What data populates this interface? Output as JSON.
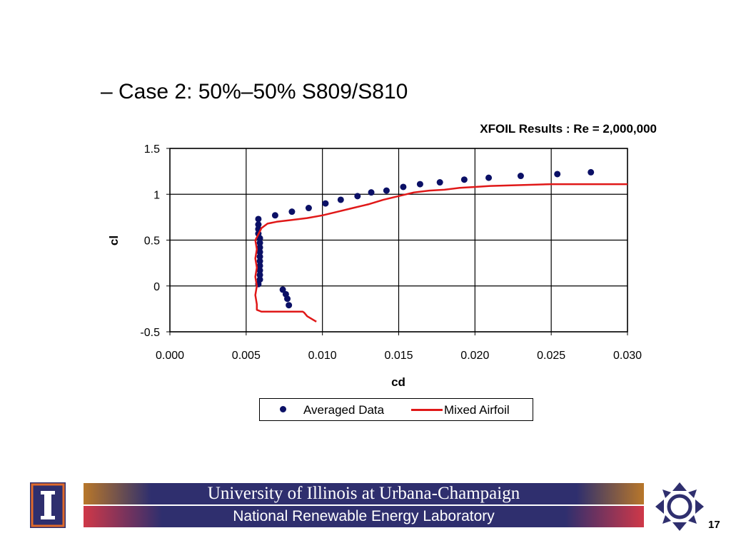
{
  "slide": {
    "bullet": "– Case 2: 50%–50% S809/S810",
    "footer_university": "University of Illinois at Urbana-Champaign",
    "footer_lab": "National Renewable Energy Laboratory",
    "page_number": "17"
  },
  "colors": {
    "series_dots": "#0b1066",
    "series_line": "#e01818",
    "footer_navy": "#2f2f6e",
    "footer_orange": "#b8772a",
    "footer_red": "#cf3848"
  },
  "icons": [
    "illinois-logo-icon",
    "nrel-logo-icon"
  ],
  "chart_data": {
    "type": "scatter",
    "title": "XFOIL Results : Re = 2,000,000",
    "xlabel": "cd",
    "ylabel": "cl",
    "xlim": [
      0.0,
      0.03
    ],
    "ylim": [
      -0.5,
      1.5
    ],
    "xticks": [
      "0.000",
      "0.005",
      "0.010",
      "0.015",
      "0.020",
      "0.025",
      "0.030"
    ],
    "yticks": [
      "-0.5",
      "0",
      "0.5",
      "1",
      "1.5"
    ],
    "grid": true,
    "legend_position": "bottom",
    "series": [
      {
        "name": "Averaged Data",
        "kind": "scatter",
        "x": [
          0.0074,
          0.0076,
          0.0077,
          0.0078,
          0.0058,
          0.0059,
          0.0059,
          0.0059,
          0.0059,
          0.0059,
          0.0059,
          0.0059,
          0.0059,
          0.0059,
          0.0059,
          0.0058,
          0.0058,
          0.0058,
          0.0058,
          0.0069,
          0.008,
          0.0091,
          0.0102,
          0.0112,
          0.0123,
          0.0132,
          0.0142,
          0.0153,
          0.0164,
          0.0177,
          0.0193,
          0.0209,
          0.023,
          0.0254,
          0.0276
        ],
        "y": [
          -0.04,
          -0.09,
          -0.14,
          -0.21,
          0.02,
          0.07,
          0.12,
          0.17,
          0.22,
          0.27,
          0.32,
          0.37,
          0.42,
          0.47,
          0.52,
          0.57,
          0.62,
          0.67,
          0.73,
          0.77,
          0.81,
          0.85,
          0.9,
          0.94,
          0.98,
          1.02,
          1.04,
          1.08,
          1.11,
          1.13,
          1.16,
          1.18,
          1.2,
          1.22,
          1.24
        ]
      },
      {
        "name": "Mixed Airfoil",
        "kind": "line",
        "x": [
          0.0096,
          0.009,
          0.0088,
          0.0087,
          0.007,
          0.006,
          0.0057,
          0.0057,
          0.0056,
          0.0057,
          0.0056,
          0.0057,
          0.0056,
          0.0057,
          0.0056,
          0.0057,
          0.006,
          0.0064,
          0.007,
          0.008,
          0.009,
          0.01,
          0.011,
          0.012,
          0.013,
          0.014,
          0.015,
          0.016,
          0.017,
          0.018,
          0.019,
          0.02,
          0.021,
          0.022,
          0.023,
          0.024,
          0.025,
          0.026,
          0.027,
          0.028,
          0.029,
          0.03
        ],
        "y": [
          -0.39,
          -0.33,
          -0.29,
          -0.28,
          -0.28,
          -0.28,
          -0.26,
          -0.2,
          -0.1,
          0.0,
          0.1,
          0.2,
          0.3,
          0.4,
          0.5,
          0.53,
          0.63,
          0.68,
          0.7,
          0.72,
          0.74,
          0.77,
          0.81,
          0.85,
          0.89,
          0.94,
          0.98,
          1.02,
          1.04,
          1.05,
          1.07,
          1.08,
          1.09,
          1.095,
          1.1,
          1.105,
          1.11,
          1.11,
          1.11,
          1.11,
          1.11,
          1.11
        ]
      }
    ]
  }
}
